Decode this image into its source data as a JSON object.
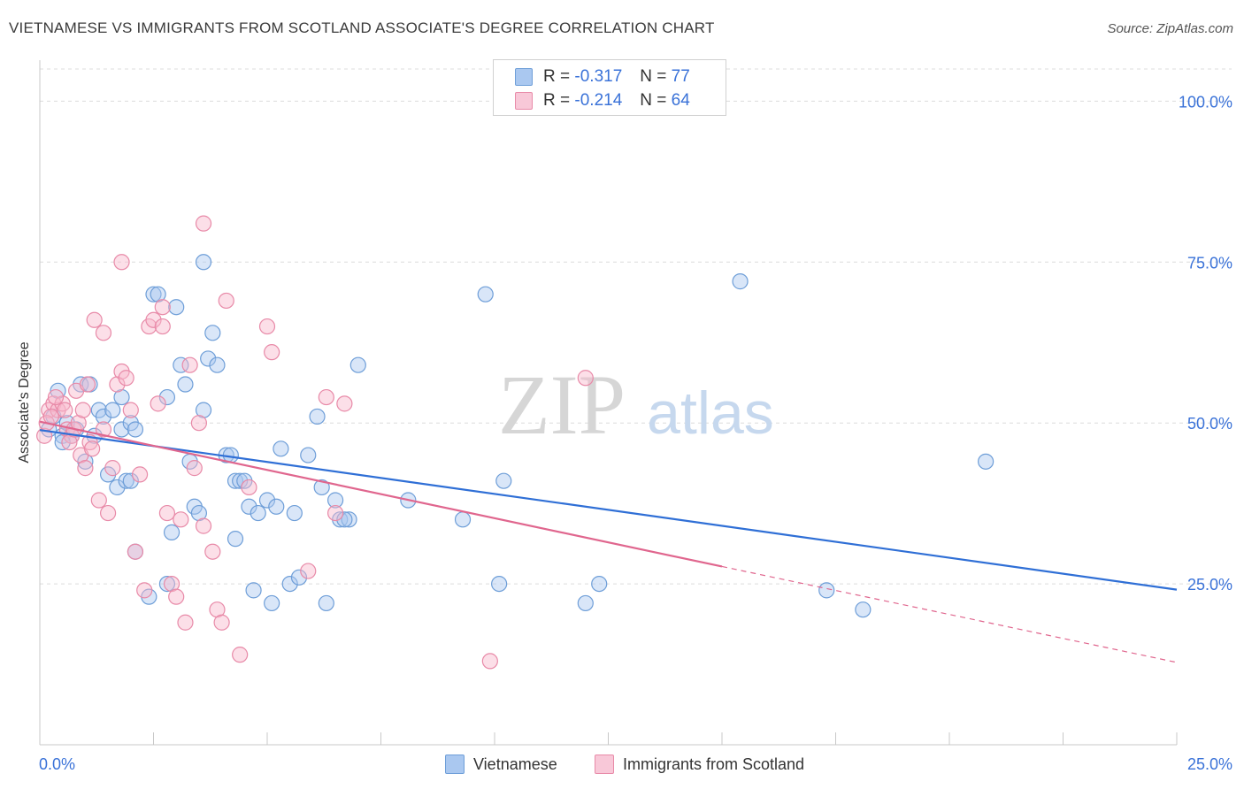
{
  "title": "VIETNAMESE VS IMMIGRANTS FROM SCOTLAND ASSOCIATE'S DEGREE CORRELATION CHART",
  "source": "Source: ZipAtlas.com",
  "watermark": {
    "part1": "ZIP",
    "part2": "atlas"
  },
  "legend_stats": [
    {
      "r_label": "R =",
      "r_value": "-0.317",
      "n_label": "N =",
      "n_value": "77"
    },
    {
      "r_label": "R =",
      "r_value": "-0.214",
      "n_label": "N =",
      "n_value": "64"
    }
  ],
  "legend_names": [
    "Vietnamese",
    "Immigrants from Scotland"
  ],
  "colors": {
    "blue_fill": "#aac8f0",
    "blue_stroke": "#6e9ed8",
    "blue_line": "#2f6fd6",
    "pink_fill": "#f8b8cc",
    "pink_stroke": "#e88aa8",
    "pink_line": "#e0668e",
    "axis_text": "#3a72d8",
    "grid": "#dcdcdc"
  },
  "chart_data": {
    "type": "scatter",
    "xlabel": "",
    "ylabel": "Associate's Degree",
    "xlim": [
      0,
      25
    ],
    "ylim": [
      0,
      105
    ],
    "x_tick_labels": [
      "0.0%",
      "25.0%"
    ],
    "y_ticks": [
      25,
      50,
      75,
      100
    ],
    "y_tick_labels": [
      "25.0%",
      "50.0%",
      "75.0%",
      "100.0%"
    ],
    "grid": true,
    "series": [
      {
        "name": "Vietnamese",
        "trend": {
          "x": [
            0,
            25
          ],
          "y": [
            48.9,
            24.1
          ]
        },
        "points": [
          [
            0.2,
            49
          ],
          [
            0.3,
            51
          ],
          [
            0.4,
            55
          ],
          [
            0.5,
            48
          ],
          [
            0.6,
            50
          ],
          [
            0.7,
            48
          ],
          [
            0.8,
            49
          ],
          [
            0.9,
            56
          ],
          [
            1.1,
            56
          ],
          [
            1.0,
            44
          ],
          [
            1.2,
            48
          ],
          [
            1.3,
            52
          ],
          [
            1.4,
            51
          ],
          [
            1.6,
            52
          ],
          [
            1.8,
            54
          ],
          [
            1.8,
            49
          ],
          [
            2.0,
            50
          ],
          [
            2.1,
            49
          ],
          [
            1.7,
            40
          ],
          [
            1.9,
            41
          ],
          [
            2.0,
            41
          ],
          [
            2.5,
            70
          ],
          [
            2.6,
            70
          ],
          [
            2.8,
            54
          ],
          [
            3.0,
            68
          ],
          [
            3.1,
            59
          ],
          [
            3.2,
            56
          ],
          [
            3.3,
            44
          ],
          [
            3.4,
            37
          ],
          [
            3.5,
            36
          ],
          [
            3.6,
            75
          ],
          [
            3.7,
            60
          ],
          [
            3.8,
            64
          ],
          [
            3.9,
            59
          ],
          [
            4.1,
            45
          ],
          [
            4.3,
            32
          ],
          [
            4.3,
            41
          ],
          [
            4.4,
            41
          ],
          [
            4.5,
            41
          ],
          [
            4.6,
            37
          ],
          [
            4.7,
            24
          ],
          [
            4.8,
            36
          ],
          [
            5.0,
            38
          ],
          [
            5.1,
            22
          ],
          [
            5.2,
            37
          ],
          [
            5.3,
            46
          ],
          [
            5.5,
            25
          ],
          [
            5.7,
            26
          ],
          [
            5.9,
            45
          ],
          [
            6.1,
            51
          ],
          [
            6.2,
            40
          ],
          [
            6.3,
            22
          ],
          [
            6.5,
            38
          ],
          [
            6.6,
            35
          ],
          [
            6.8,
            35
          ],
          [
            7.0,
            59
          ],
          [
            8.1,
            38
          ],
          [
            9.3,
            35
          ],
          [
            9.8,
            70
          ],
          [
            10.1,
            25
          ],
          [
            10.2,
            41
          ],
          [
            12.0,
            22
          ],
          [
            12.3,
            25
          ],
          [
            15.4,
            72
          ],
          [
            17.3,
            24
          ],
          [
            18.1,
            21
          ],
          [
            20.8,
            44
          ],
          [
            2.9,
            33
          ],
          [
            2.8,
            25
          ],
          [
            2.1,
            30
          ],
          [
            0.5,
            47
          ],
          [
            1.5,
            42
          ],
          [
            2.4,
            23
          ],
          [
            3.6,
            52
          ],
          [
            4.2,
            45
          ],
          [
            5.6,
            36
          ],
          [
            6.7,
            35
          ]
        ]
      },
      {
        "name": "Immigrants from Scotland",
        "trend": {
          "x": [
            0,
            15
          ],
          "y": [
            50.2,
            27.7
          ]
        },
        "trend_dashed": {
          "x": [
            15,
            25
          ],
          "y": [
            27.7,
            12.8
          ]
        },
        "points": [
          [
            0.1,
            48
          ],
          [
            0.2,
            52
          ],
          [
            0.3,
            53
          ],
          [
            0.4,
            52
          ],
          [
            0.5,
            53
          ],
          [
            0.6,
            49
          ],
          [
            0.7,
            48
          ],
          [
            0.8,
            55
          ],
          [
            0.9,
            45
          ],
          [
            1.0,
            43
          ],
          [
            1.1,
            47
          ],
          [
            1.2,
            66
          ],
          [
            1.3,
            38
          ],
          [
            1.4,
            49
          ],
          [
            1.4,
            64
          ],
          [
            1.5,
            36
          ],
          [
            1.6,
            43
          ],
          [
            1.7,
            56
          ],
          [
            1.8,
            58
          ],
          [
            1.8,
            75
          ],
          [
            1.9,
            57
          ],
          [
            2.0,
            52
          ],
          [
            2.1,
            30
          ],
          [
            2.2,
            42
          ],
          [
            2.3,
            24
          ],
          [
            2.4,
            65
          ],
          [
            2.5,
            66
          ],
          [
            2.6,
            53
          ],
          [
            2.7,
            65
          ],
          [
            2.7,
            68
          ],
          [
            2.8,
            36
          ],
          [
            2.9,
            25
          ],
          [
            3.0,
            23
          ],
          [
            3.1,
            35
          ],
          [
            3.2,
            19
          ],
          [
            3.3,
            59
          ],
          [
            3.4,
            43
          ],
          [
            3.5,
            50
          ],
          [
            3.6,
            34
          ],
          [
            3.6,
            81
          ],
          [
            3.8,
            30
          ],
          [
            3.9,
            21
          ],
          [
            4.0,
            19
          ],
          [
            4.1,
            69
          ],
          [
            4.4,
            14
          ],
          [
            4.6,
            40
          ],
          [
            5.0,
            65
          ],
          [
            5.1,
            61
          ],
          [
            5.9,
            27
          ],
          [
            6.3,
            54
          ],
          [
            6.5,
            36
          ],
          [
            6.7,
            53
          ],
          [
            9.9,
            13
          ],
          [
            12.0,
            57
          ],
          [
            0.15,
            50
          ],
          [
            0.25,
            51
          ],
          [
            0.35,
            54
          ],
          [
            0.55,
            52
          ],
          [
            0.65,
            47
          ],
          [
            0.75,
            49
          ],
          [
            0.85,
            50
          ],
          [
            0.95,
            52
          ],
          [
            1.05,
            56
          ],
          [
            1.15,
            46
          ]
        ]
      }
    ]
  }
}
